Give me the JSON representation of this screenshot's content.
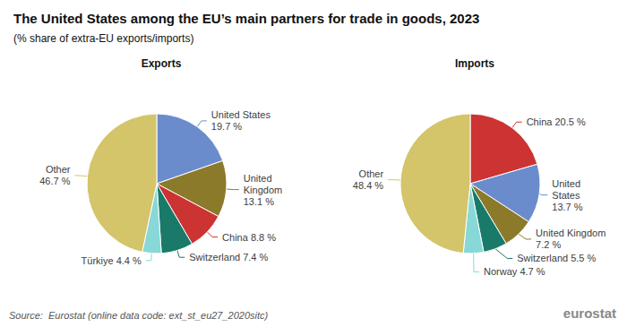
{
  "title": "The United States among the EU’s main partners for trade in goods, 2023",
  "subtitle": "(% share of extra-EU exports/imports)",
  "annotations": [
    "Source:  Eurostat (online data code: ext_st_eu27_2020sitc)",
    "eurostat"
  ],
  "chart_data": [
    {
      "type": "pie",
      "title": "Exports",
      "categories": [
        "United States",
        "United Kingdom",
        "China",
        "Switzerland",
        "Türkiye",
        "Other"
      ],
      "values": [
        19.7,
        13.1,
        8.8,
        7.4,
        4.4,
        46.7
      ],
      "value_labels": [
        "United States\n19.7 %",
        "United\nKingdom\n13.1 %",
        "China 8.8 %",
        "Switzerland 7.4 %",
        "Türkiye 4.4 %",
        "Other\n46.7 %"
      ],
      "colors": [
        "#6b8ccc",
        "#8b7a2a",
        "#cc3333",
        "#1a7a6a",
        "#88d8d8",
        "#d4c46a"
      ],
      "data_labels": true,
      "legend": false
    },
    {
      "type": "pie",
      "title": "Imports",
      "categories": [
        "China",
        "United States",
        "United Kingdom",
        "Switzerland",
        "Norway",
        "Other"
      ],
      "values": [
        20.5,
        13.7,
        7.2,
        5.5,
        4.7,
        48.4
      ],
      "value_labels": [
        "China 20.5 %",
        "United\nStates\n13.7 %",
        "United Kingdom\n7.2 %",
        "Switzerland 5.5 %",
        "Norway 4.7 %",
        "Other\n48.4 %"
      ],
      "colors": [
        "#cc3333",
        "#6b8ccc",
        "#8b7a2a",
        "#1a7a6a",
        "#88d8d8",
        "#d4c46a"
      ],
      "data_labels": true,
      "legend": false
    }
  ]
}
